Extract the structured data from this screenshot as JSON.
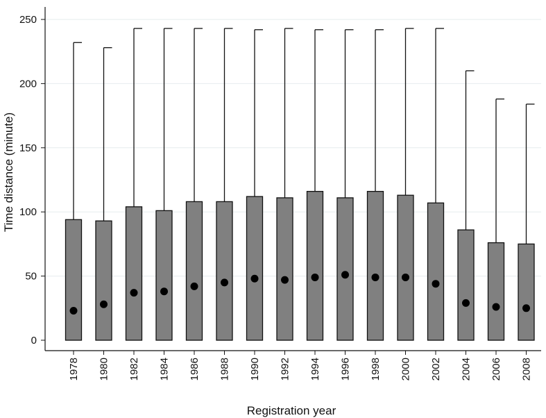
{
  "chart_data": {
    "type": "bar",
    "title": "",
    "xlabel": "Registration year",
    "ylabel": "Time distance (minute)",
    "ylim": [
      0,
      250
    ],
    "yticks": [
      0,
      50,
      100,
      150,
      200,
      250
    ],
    "grid": true,
    "legend": "none",
    "categories": [
      "1978",
      "1980",
      "1982",
      "1984",
      "1986",
      "1988",
      "1990",
      "1992",
      "1994",
      "1996",
      "1998",
      "2000",
      "2002",
      "2004",
      "2006",
      "2008"
    ],
    "series": [
      {
        "values": [
          94,
          93,
          104,
          101,
          108,
          108,
          112,
          111,
          116,
          111,
          116,
          113,
          107,
          86,
          76,
          75
        ]
      },
      {
        "values": [
          232,
          228,
          243,
          243,
          243,
          243,
          242,
          243,
          242,
          242,
          242,
          243,
          243,
          210,
          188,
          184
        ]
      },
      {
        "values": [
          23,
          28,
          37,
          38,
          42,
          45,
          48,
          47,
          49,
          51,
          49,
          49,
          44,
          29,
          26,
          25
        ]
      }
    ],
    "colors": {
      "bar": "#808080",
      "bar_stroke": "#111111",
      "marker": "#000000",
      "grid": "#e6ecee",
      "axis": "#111111"
    }
  }
}
